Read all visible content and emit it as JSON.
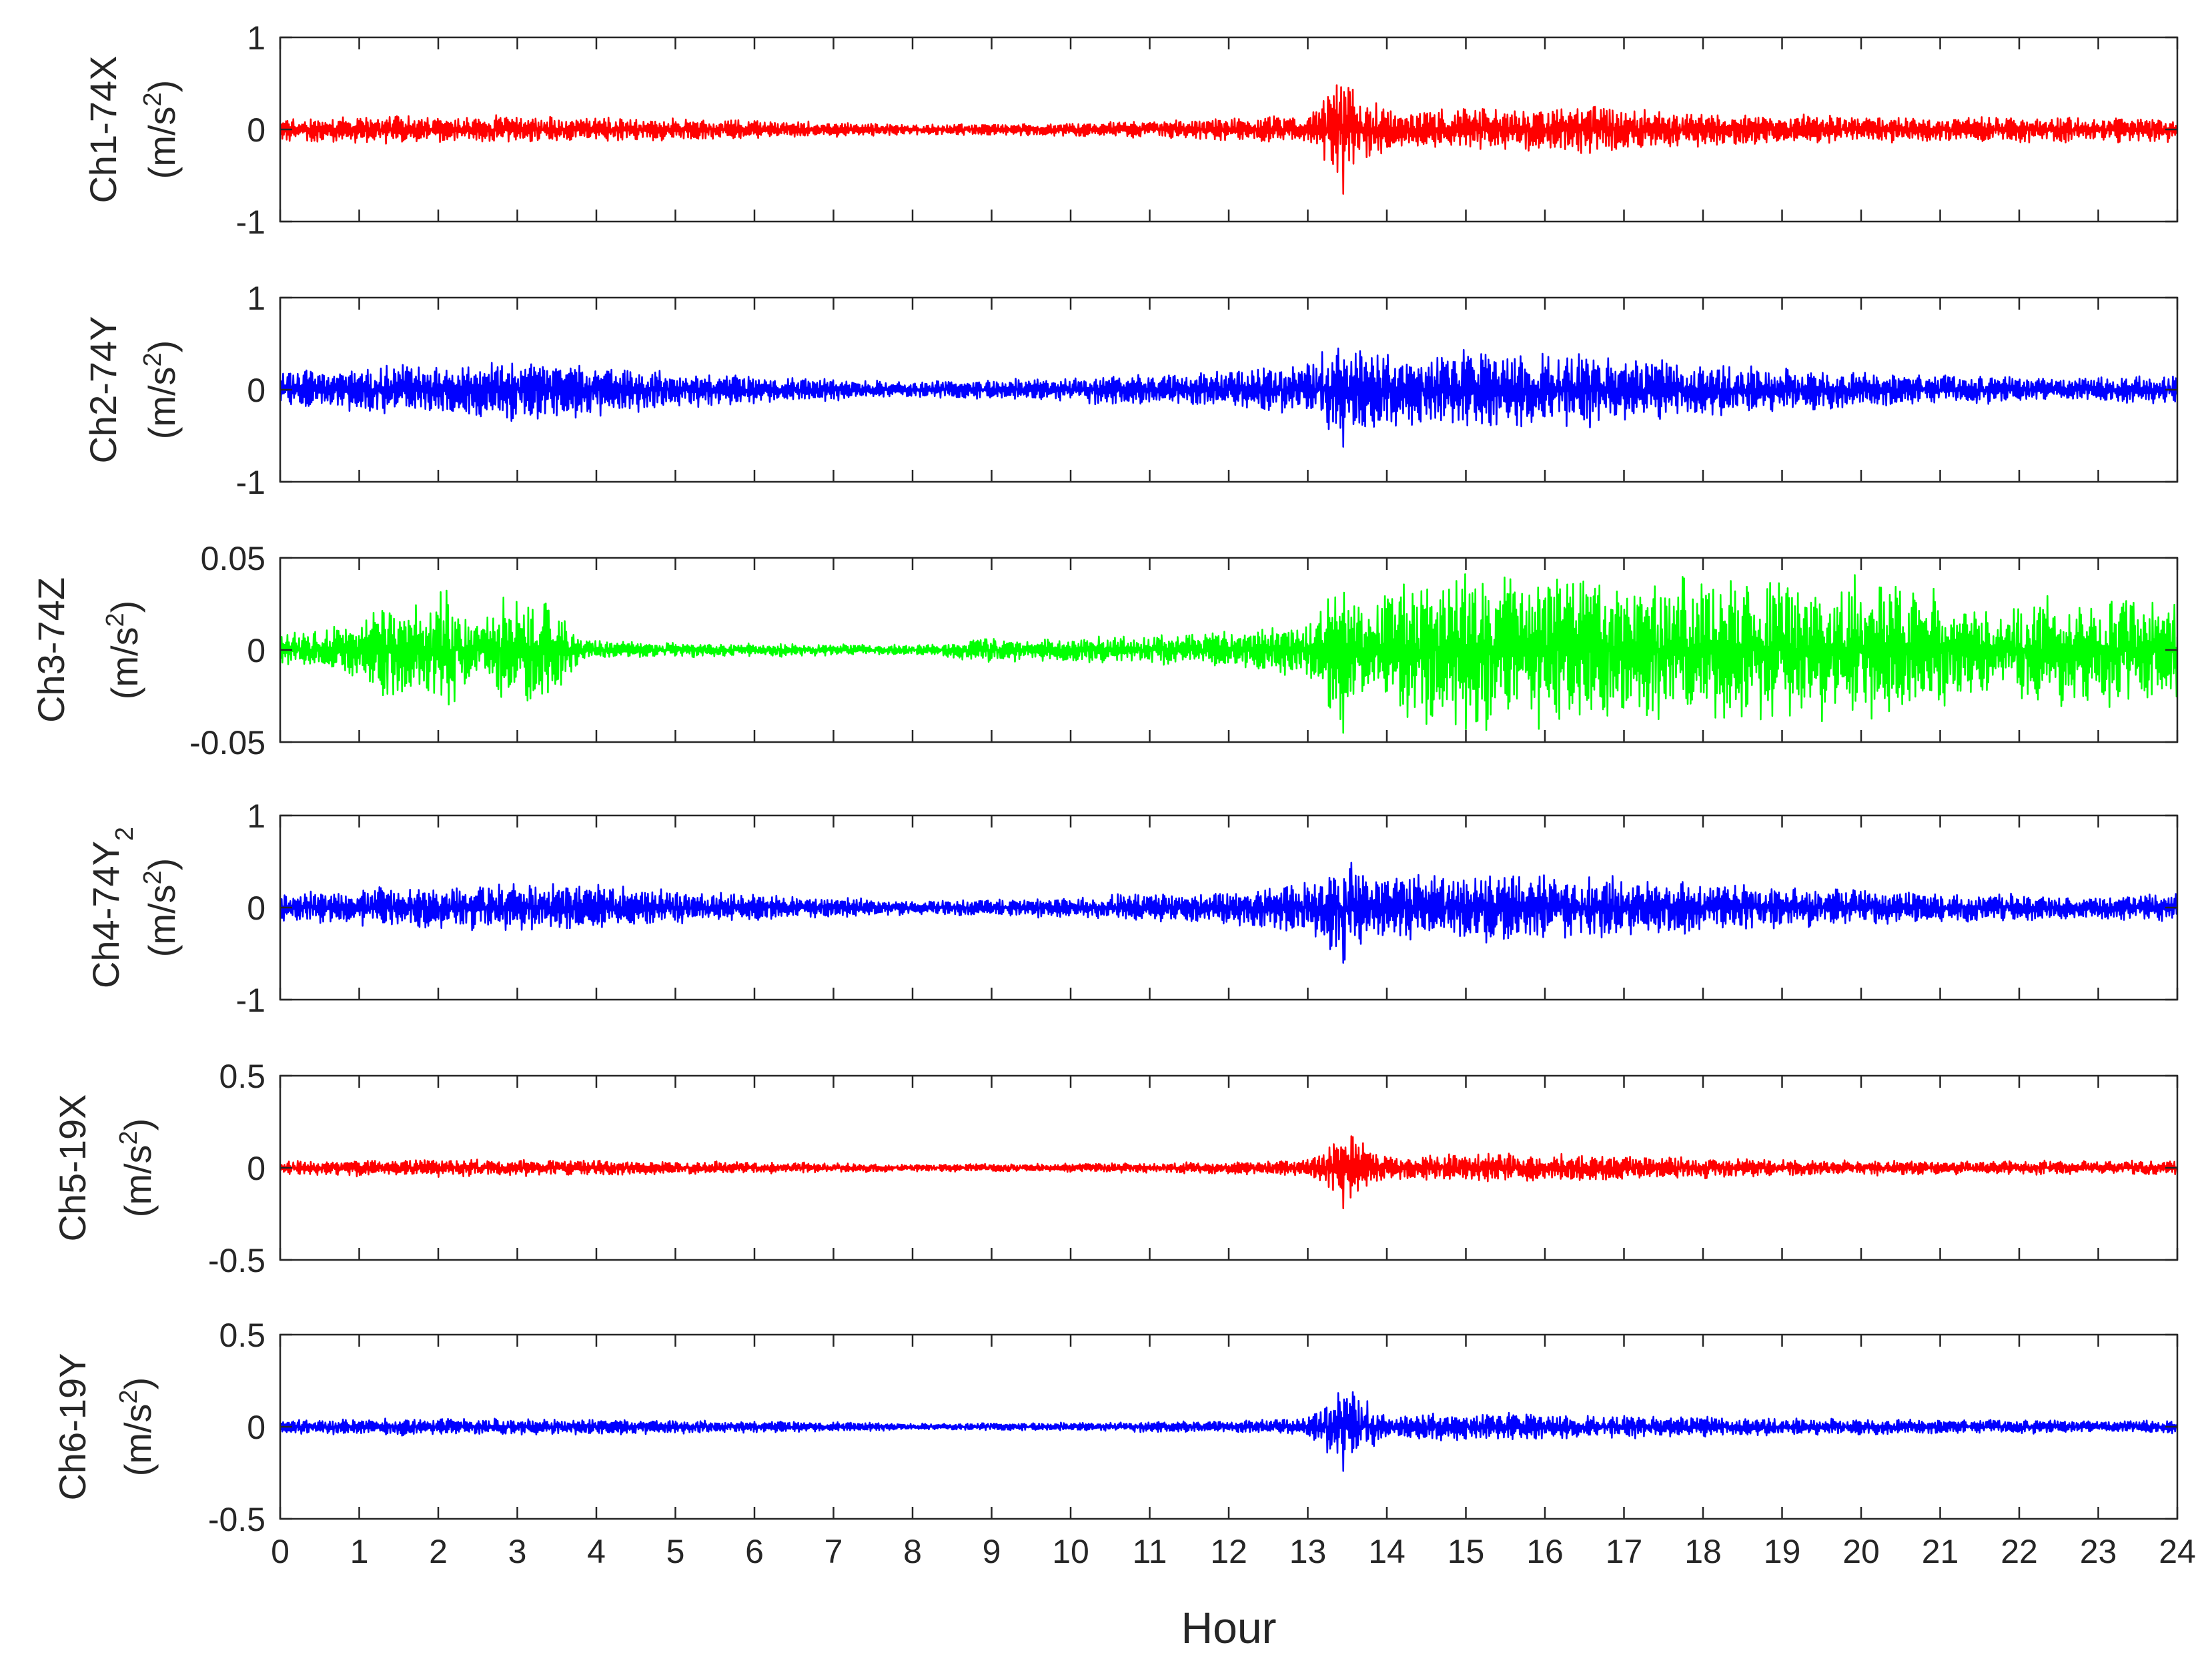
{
  "chart_data": {
    "type": "line",
    "xlabel": "Hour",
    "xlim": [
      0,
      24
    ],
    "xticks": [
      0,
      1,
      2,
      3,
      4,
      5,
      6,
      7,
      8,
      9,
      10,
      11,
      12,
      13,
      14,
      15,
      16,
      17,
      18,
      19,
      20,
      21,
      22,
      23,
      24
    ],
    "grid": false,
    "legend": "none",
    "panels": [
      {
        "ylabel": [
          "Ch1-74X",
          "(m/s",
          "2",
          ")"
        ],
        "ylim": [
          -1,
          1
        ],
        "yticks": [
          -1,
          0,
          1
        ],
        "ytick_labels": [
          "-1",
          "0",
          "1"
        ],
        "color": "#ff0000",
        "envelope": {
          "hour": [
            0,
            1,
            2,
            3,
            4,
            5,
            6,
            7,
            8,
            9,
            10,
            11,
            12,
            13,
            13.45,
            14,
            15,
            16,
            16.7,
            17,
            18,
            19,
            20,
            21,
            22,
            23,
            24
          ],
          "amplitude": [
            0.15,
            0.17,
            0.16,
            0.16,
            0.14,
            0.13,
            0.11,
            0.09,
            0.06,
            0.07,
            0.08,
            0.1,
            0.13,
            0.18,
            0.7,
            0.22,
            0.26,
            0.25,
            0.33,
            0.24,
            0.2,
            0.17,
            0.16,
            0.15,
            0.15,
            0.15,
            0.14
          ]
        }
      },
      {
        "ylabel": [
          "Ch2-74Y",
          "(m/s",
          "2",
          ")"
        ],
        "ylim": [
          -1,
          1
        ],
        "yticks": [
          -1,
          0,
          1
        ],
        "ytick_labels": [
          "-1",
          "0",
          "1"
        ],
        "color": "#0000ff",
        "envelope": {
          "hour": [
            0,
            1,
            2,
            3,
            4,
            5,
            6,
            7,
            8,
            9,
            10,
            11,
            12,
            13,
            13.45,
            14,
            15,
            16,
            17,
            18,
            19,
            20,
            21,
            22,
            23,
            24
          ],
          "amplitude": [
            0.22,
            0.27,
            0.3,
            0.36,
            0.3,
            0.22,
            0.17,
            0.13,
            0.1,
            0.12,
            0.15,
            0.18,
            0.22,
            0.3,
            0.62,
            0.4,
            0.44,
            0.46,
            0.38,
            0.32,
            0.25,
            0.2,
            0.17,
            0.16,
            0.16,
            0.16
          ]
        }
      },
      {
        "ylabel": [
          "Ch3-74Z",
          "(m/s",
          "2",
          ")"
        ],
        "ylim": [
          -0.05,
          0.05
        ],
        "yticks": [
          -0.05,
          0,
          0.05
        ],
        "ytick_labels": [
          "-0.05",
          "0",
          "0.05"
        ],
        "color": "#00ff00",
        "envelope": {
          "hour": [
            0,
            0.8,
            1.3,
            1.7,
            2.1,
            2.5,
            2.9,
            3.3,
            3.6,
            3.8,
            4.5,
            5.5,
            6.5,
            7.5,
            8.3,
            9,
            9.5,
            10.5,
            11.5,
            12.3,
            13,
            13.45,
            13.8,
            14,
            15,
            16,
            17,
            18,
            19,
            20,
            21,
            21.8,
            22.3,
            23,
            24
          ],
          "amplitude": [
            0.01,
            0.014,
            0.032,
            0.024,
            0.036,
            0.017,
            0.034,
            0.034,
            0.02,
            0.006,
            0.005,
            0.004,
            0.004,
            0.003,
            0.003,
            0.008,
            0.006,
            0.008,
            0.009,
            0.012,
            0.018,
            0.045,
            0.02,
            0.04,
            0.045,
            0.044,
            0.04,
            0.042,
            0.045,
            0.042,
            0.036,
            0.02,
            0.034,
            0.032,
            0.028
          ]
        }
      },
      {
        "ylabel": [
          "Ch4-74Y",
          "2",
          "(m/s",
          "2",
          ")"
        ],
        "ylim": [
          -1,
          1
        ],
        "yticks": [
          -1,
          0,
          1
        ],
        "ytick_labels": [
          "-1",
          "0",
          "1"
        ],
        "color": "#0000ff",
        "envelope": {
          "hour": [
            0,
            1,
            2,
            3,
            4,
            5,
            6,
            7,
            8,
            9,
            10,
            11,
            12,
            13,
            13.45,
            14,
            15,
            16,
            17,
            18,
            19,
            20,
            21,
            22,
            23,
            24
          ],
          "amplitude": [
            0.18,
            0.22,
            0.26,
            0.3,
            0.26,
            0.2,
            0.16,
            0.12,
            0.09,
            0.1,
            0.13,
            0.16,
            0.2,
            0.3,
            0.6,
            0.36,
            0.38,
            0.4,
            0.34,
            0.3,
            0.24,
            0.2,
            0.17,
            0.16,
            0.16,
            0.16
          ]
        }
      },
      {
        "ylabel": [
          "Ch5-19X",
          "(m/s",
          "2",
          ")"
        ],
        "ylim": [
          -0.5,
          0.5
        ],
        "yticks": [
          -0.5,
          0,
          0.5
        ],
        "ytick_labels": [
          "-0.5",
          "0",
          "0.5"
        ],
        "color": "#ff0000",
        "envelope": {
          "hour": [
            0,
            1,
            2,
            3,
            4,
            5,
            6,
            7,
            8,
            9,
            10,
            11,
            12,
            13,
            13.45,
            14,
            15,
            16,
            17,
            18,
            19,
            20,
            21,
            22,
            23,
            24
          ],
          "amplitude": [
            0.04,
            0.05,
            0.05,
            0.05,
            0.045,
            0.04,
            0.035,
            0.03,
            0.02,
            0.022,
            0.025,
            0.03,
            0.035,
            0.05,
            0.22,
            0.07,
            0.08,
            0.08,
            0.07,
            0.06,
            0.05,
            0.045,
            0.04,
            0.04,
            0.04,
            0.04
          ]
        }
      },
      {
        "ylabel": [
          "Ch6-19Y",
          "(m/s",
          "2",
          ")"
        ],
        "ylim": [
          -0.5,
          0.5
        ],
        "yticks": [
          -0.5,
          0,
          0.5
        ],
        "ytick_labels": [
          "-0.5",
          "0",
          "0.5"
        ],
        "color": "#0000ff",
        "envelope": {
          "hour": [
            0,
            1,
            2,
            3,
            4,
            5,
            6,
            7,
            8,
            9,
            10,
            11,
            12,
            13,
            13.45,
            14,
            15,
            16,
            17,
            18,
            19,
            20,
            21,
            22,
            23,
            24
          ],
          "amplitude": [
            0.04,
            0.05,
            0.05,
            0.05,
            0.045,
            0.04,
            0.035,
            0.03,
            0.02,
            0.022,
            0.025,
            0.03,
            0.035,
            0.05,
            0.24,
            0.07,
            0.08,
            0.075,
            0.065,
            0.06,
            0.05,
            0.045,
            0.04,
            0.04,
            0.04,
            0.04
          ]
        }
      }
    ]
  }
}
